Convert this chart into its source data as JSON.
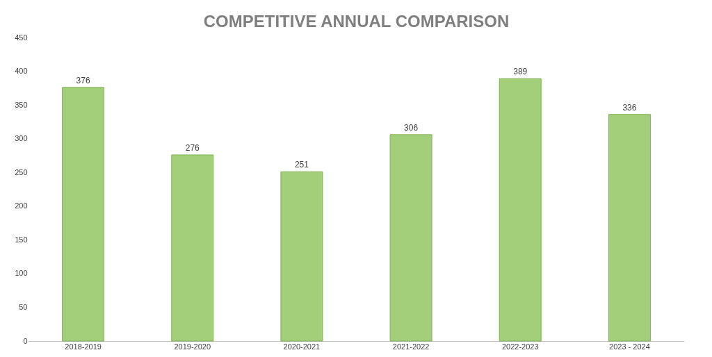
{
  "chart_data": {
    "type": "bar",
    "title": "COMPETITIVE ANNUAL COMPARISON",
    "categories": [
      "2018-2019",
      "2019-2020",
      "2020-2021",
      "2021-2022",
      "2022-2023",
      "2023 - 2024"
    ],
    "values": [
      376,
      276,
      251,
      306,
      389,
      336
    ],
    "color": "#a3cf7a",
    "ylim": [
      0,
      450
    ],
    "yticks": [
      0,
      50,
      100,
      150,
      200,
      250,
      300,
      350,
      400,
      450
    ],
    "grid": false,
    "data_labels": true
  }
}
